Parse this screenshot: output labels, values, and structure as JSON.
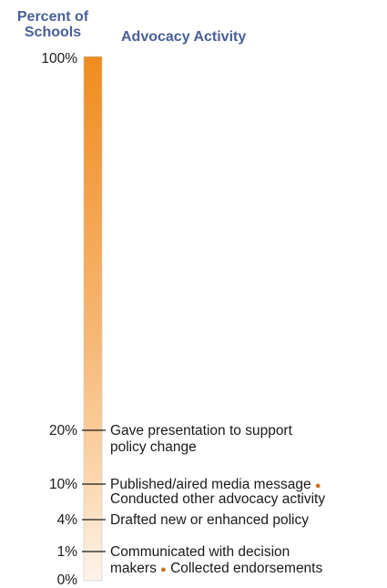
{
  "header": {
    "percent_label": "Percent of Schools",
    "activity_label": "Advocacy Activity"
  },
  "colors": {
    "header_text": "#4a5f99",
    "bar_top": "#f08c1e",
    "bar_bottom": "#fdf4ea",
    "bullet": "#c8741e",
    "bar_border": "#c9c9c9"
  },
  "chart_data": {
    "type": "bar",
    "ylabel": "Percent of Schools",
    "xlabel": "Advocacy Activity",
    "y_ticks": [
      "100%",
      "20%",
      "10%",
      "4%",
      "1%",
      "0%"
    ],
    "markers": [
      {
        "value": 20,
        "tick": "20%",
        "label": "Gave presentation to support policy change",
        "lines": [
          "Gave presentation to support",
          "policy change"
        ]
      },
      {
        "value": 10,
        "tick": "10%",
        "label": "Published/aired media message • Conducted other advocacy activity",
        "lines": [
          "Published/aired media message",
          "Conducted other advocacy activity"
        ]
      },
      {
        "value": 4,
        "tick": "4%",
        "label": "Drafted new or enhanced policy",
        "lines": [
          "Drafted new or enhanced policy"
        ]
      },
      {
        "value": 1,
        "tick": "1%",
        "label": "Communicated with decision makers • Collected endorsements",
        "lines": [
          "Communicated with decision",
          "makers",
          "Collected endorsements"
        ]
      }
    ],
    "bullet_symbol": "●"
  }
}
